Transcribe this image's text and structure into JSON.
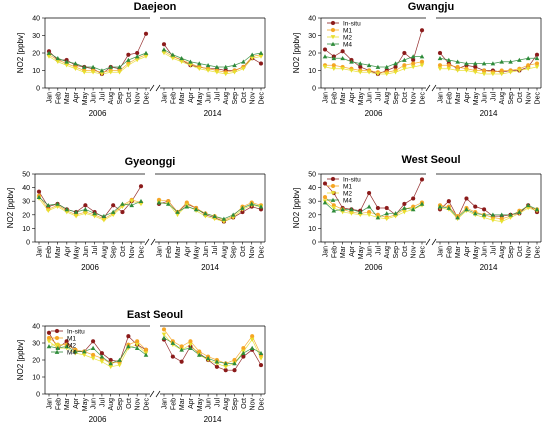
{
  "colors": {
    "insitu": "#8B1A1A",
    "m1": "#F5A623",
    "m2": "#E8E030",
    "m4": "#2E8B3A",
    "axis": "#000000",
    "frame": "#333333"
  },
  "legend_labels": [
    "In-situ",
    "M1",
    "M2",
    "M4"
  ],
  "chart_data": [
    {
      "type": "line",
      "title": "Daejeon",
      "ylabel": "NO2 [ppbv]",
      "ylim": [
        0,
        40
      ],
      "yticks": [
        0,
        10,
        20,
        30,
        40
      ],
      "legend": false,
      "year_labels": [
        "2006",
        "2014"
      ],
      "categories": [
        "Jan",
        "Feb",
        "Mar",
        "Apr",
        "May",
        "Jun",
        "Jul",
        "Aug",
        "Sep",
        "Oct",
        "Nov",
        "Dec"
      ],
      "panels": [
        {
          "year": "2006",
          "series": [
            {
              "name": "In-situ",
              "values": [
                21,
                16,
                16,
                13,
                12,
                11,
                8,
                12,
                11,
                19,
                20,
                31
              ]
            },
            {
              "name": "M1",
              "values": [
                19,
                16,
                14,
                12,
                10,
                10,
                9,
                10,
                10,
                14,
                17,
                19
              ]
            },
            {
              "name": "M2",
              "values": [
                18,
                15,
                13,
                11,
                9,
                9,
                8,
                9,
                9,
                13,
                16,
                18
              ]
            },
            {
              "name": "M4",
              "values": [
                20,
                17,
                15,
                14,
                12,
                12,
                10,
                12,
                12,
                16,
                18,
                20
              ]
            }
          ]
        },
        {
          "year": "2014",
          "series": [
            {
              "name": "In-situ",
              "values": [
                25,
                18,
                16,
                13,
                12,
                11,
                11,
                10,
                10,
                12,
                17,
                14
              ]
            },
            {
              "name": "M1",
              "values": [
                21,
                18,
                16,
                14,
                12,
                11,
                10,
                9,
                10,
                12,
                18,
                19
              ]
            },
            {
              "name": "M2",
              "values": [
                20,
                17,
                15,
                13,
                11,
                10,
                9,
                8,
                9,
                11,
                17,
                18
              ]
            },
            {
              "name": "M4",
              "values": [
                22,
                19,
                17,
                15,
                14,
                13,
                12,
                12,
                13,
                15,
                19,
                20
              ]
            }
          ]
        }
      ]
    },
    {
      "type": "line",
      "title": "Gwangju",
      "ylabel": "NO2 [ppbv]",
      "ylim": [
        0,
        40
      ],
      "yticks": [
        0,
        10,
        20,
        30,
        40
      ],
      "legend": true,
      "year_labels": [
        "2006",
        "2014"
      ],
      "categories": [
        "Jan",
        "Feb",
        "Mar",
        "Apr",
        "May",
        "Jun",
        "Jul",
        "Aug",
        "Sep",
        "Oct",
        "Nov",
        "Dec"
      ],
      "panels": [
        {
          "year": "2006",
          "series": [
            {
              "name": "In-situ",
              "values": [
                22,
                18,
                21,
                16,
                12,
                10,
                8,
                10,
                12,
                20,
                16,
                33
              ]
            },
            {
              "name": "M1",
              "values": [
                13,
                13,
                12,
                11,
                10,
                10,
                9,
                9,
                10,
                13,
                14,
                15
              ]
            },
            {
              "name": "M2",
              "values": [
                12,
                11,
                11,
                10,
                9,
                9,
                8,
                8,
                9,
                11,
                12,
                13
              ]
            },
            {
              "name": "M4",
              "values": [
                18,
                17,
                17,
                15,
                14,
                13,
                12,
                12,
                14,
                16,
                18,
                18
              ]
            }
          ]
        },
        {
          "year": "2014",
          "series": [
            {
              "name": "In-situ",
              "values": [
                20,
                14,
                11,
                13,
                12,
                10,
                10,
                9,
                10,
                10,
                12,
                19
              ]
            },
            {
              "name": "M1",
              "values": [
                13,
                13,
                12,
                11,
                10,
                10,
                9,
                10,
                10,
                11,
                13,
                14
              ]
            },
            {
              "name": "M2",
              "values": [
                11,
                11,
                10,
                10,
                9,
                8,
                8,
                8,
                9,
                10,
                11,
                12
              ]
            },
            {
              "name": "M4",
              "values": [
                17,
                16,
                15,
                14,
                14,
                14,
                14,
                15,
                15,
                16,
                17,
                17
              ]
            }
          ]
        }
      ]
    },
    {
      "type": "line",
      "title": "Gyeonggi",
      "ylabel": "NO2 [ppbv]",
      "ylim": [
        0,
        50
      ],
      "yticks": [
        0,
        10,
        20,
        30,
        40,
        50
      ],
      "legend": false,
      "year_labels": [
        "2006",
        "2014"
      ],
      "categories": [
        "Jan",
        "Feb",
        "Mar",
        "Apr",
        "May",
        "Jun",
        "Jul",
        "Aug",
        "Sep",
        "Oct",
        "Nov",
        "Dec"
      ],
      "panels": [
        {
          "year": "2006",
          "series": [
            {
              "name": "In-situ",
              "values": [
                37,
                26,
                28,
                24,
                22,
                27,
                22,
                18,
                27,
                22,
                30,
                41
              ]
            },
            {
              "name": "M1",
              "values": [
                34,
                24,
                27,
                23,
                20,
                22,
                20,
                17,
                21,
                27,
                31,
                29
              ]
            },
            {
              "name": "M2",
              "values": [
                32,
                23,
                26,
                22,
                19,
                21,
                19,
                16,
                20,
                26,
                30,
                28
              ]
            },
            {
              "name": "M4",
              "values": [
                33,
                27,
                28,
                24,
                22,
                24,
                21,
                19,
                22,
                28,
                27,
                30
              ]
            }
          ]
        },
        {
          "year": "2014",
          "series": [
            {
              "name": "In-situ",
              "values": [
                28,
                30,
                22,
                28,
                25,
                20,
                18,
                15,
                18,
                22,
                26,
                24
              ]
            },
            {
              "name": "M1",
              "values": [
                31,
                30,
                22,
                29,
                25,
                21,
                19,
                16,
                19,
                26,
                29,
                27
              ]
            },
            {
              "name": "M2",
              "values": [
                29,
                28,
                20,
                27,
                23,
                19,
                17,
                15,
                18,
                24,
                27,
                26
              ]
            },
            {
              "name": "M4",
              "values": [
                29,
                28,
                22,
                26,
                24,
                21,
                19,
                17,
                20,
                25,
                28,
                26
              ]
            }
          ]
        }
      ]
    },
    {
      "type": "line",
      "title": "West Seoul",
      "ylabel": "NO2 [ppbv]",
      "ylim": [
        0,
        50
      ],
      "yticks": [
        0,
        10,
        20,
        30,
        40,
        50
      ],
      "legend": true,
      "year_labels": [
        "2006",
        "2014"
      ],
      "categories": [
        "Jan",
        "Feb",
        "Mar",
        "Apr",
        "May",
        "Jun",
        "Jul",
        "Aug",
        "Sep",
        "Oct",
        "Nov",
        "Dec"
      ],
      "panels": [
        {
          "year": "2006",
          "series": [
            {
              "name": "In-situ",
              "values": [
                43,
                36,
                25,
                24,
                23,
                36,
                25,
                25,
                20,
                28,
                32,
                46
              ]
            },
            {
              "name": "M1",
              "values": [
                33,
                27,
                24,
                22,
                21,
                22,
                20,
                18,
                20,
                24,
                26,
                29
              ]
            },
            {
              "name": "M2",
              "values": [
                30,
                25,
                22,
                21,
                20,
                20,
                18,
                17,
                19,
                22,
                24,
                27
              ]
            },
            {
              "name": "M4",
              "values": [
                29,
                23,
                24,
                24,
                22,
                26,
                18,
                21,
                21,
                25,
                24,
                28
              ]
            }
          ]
        },
        {
          "year": "2014",
          "series": [
            {
              "name": "In-situ",
              "values": [
                24,
                30,
                18,
                32,
                26,
                24,
                19,
                19,
                20,
                21,
                27,
                22
              ]
            },
            {
              "name": "M1",
              "values": [
                27,
                26,
                19,
                25,
                22,
                20,
                18,
                17,
                19,
                23,
                26,
                24
              ]
            },
            {
              "name": "M2",
              "values": [
                25,
                24,
                17,
                23,
                20,
                18,
                16,
                15,
                18,
                21,
                25,
                23
              ]
            },
            {
              "name": "M4",
              "values": [
                26,
                25,
                18,
                24,
                21,
                20,
                20,
                20,
                20,
                22,
                27,
                24
              ]
            }
          ]
        }
      ]
    },
    {
      "type": "line",
      "title": "East Seoul",
      "ylabel": "NO2 [ppbv]",
      "ylim": [
        0,
        40
      ],
      "yticks": [
        0,
        10,
        20,
        30,
        40
      ],
      "legend": true,
      "year_labels": [
        "2006",
        "2014"
      ],
      "categories": [
        "Jan",
        "Feb",
        "Mar",
        "Apr",
        "May",
        "Jun",
        "Jul",
        "Aug",
        "Sep",
        "Oct",
        "Nov",
        "Dec"
      ],
      "panels": [
        {
          "year": "2006",
          "series": [
            {
              "name": "In-situ",
              "values": [
                36,
                27,
                31,
                25,
                25,
                31,
                24,
                20,
                19,
                34,
                29,
                26
              ]
            },
            {
              "name": "M1",
              "values": [
                33,
                29,
                29,
                26,
                25,
                23,
                21,
                18,
                19,
                29,
                31,
                26
              ]
            },
            {
              "name": "M2",
              "values": [
                31,
                27,
                27,
                24,
                23,
                21,
                19,
                16,
                17,
                27,
                29,
                24
              ]
            },
            {
              "name": "M4",
              "values": [
                28,
                27,
                28,
                25,
                25,
                27,
                22,
                18,
                20,
                28,
                27,
                23
              ]
            }
          ]
        },
        {
          "year": "2014",
          "series": [
            {
              "name": "In-situ",
              "values": [
                32,
                22,
                19,
                28,
                24,
                20,
                16,
                14,
                14,
                22,
                26,
                17
              ]
            },
            {
              "name": "M1",
              "values": [
                38,
                31,
                28,
                31,
                25,
                22,
                20,
                18,
                20,
                27,
                34,
                23
              ]
            },
            {
              "name": "M2",
              "values": [
                35,
                29,
                26,
                29,
                23,
                20,
                18,
                16,
                18,
                25,
                32,
                21
              ]
            },
            {
              "name": "M4",
              "values": [
                33,
                30,
                26,
                27,
                23,
                21,
                19,
                18,
                18,
                24,
                27,
                24
              ]
            }
          ]
        }
      ]
    }
  ]
}
